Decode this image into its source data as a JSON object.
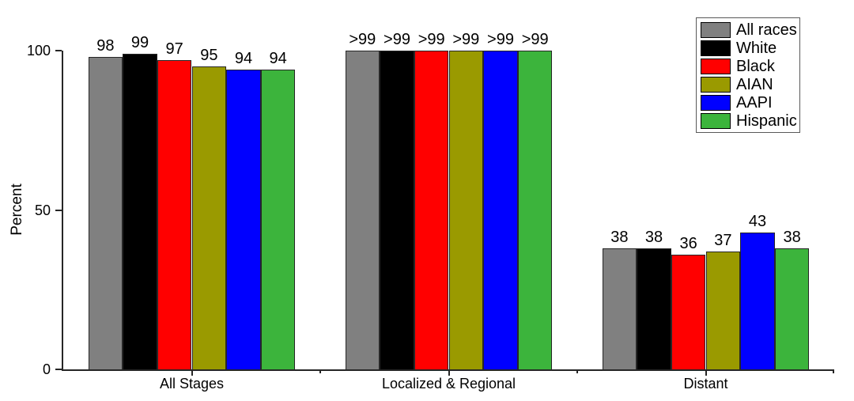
{
  "chart_data": {
    "type": "bar",
    "title": "",
    "xlabel": "",
    "ylabel": "Percent",
    "ylim": [
      0,
      100
    ],
    "yticks": [
      0,
      50,
      100
    ],
    "grid": false,
    "legend": {
      "position": "top-right",
      "entries": [
        "All races",
        "White",
        "Black",
        "AIAN",
        "AAPI",
        "Hispanic"
      ]
    },
    "categories": [
      "All Stages",
      "Localized & Regional",
      "Distant"
    ],
    "series": [
      {
        "name": "All races",
        "color": "#808080",
        "values": [
          98,
          100,
          38
        ],
        "labels": [
          "98",
          ">99",
          "38"
        ]
      },
      {
        "name": "White",
        "color": "#000000",
        "values": [
          99,
          100,
          38
        ],
        "labels": [
          "99",
          ">99",
          "38"
        ]
      },
      {
        "name": "Black",
        "color": "#FF0000",
        "values": [
          97,
          100,
          36
        ],
        "labels": [
          "97",
          ">99",
          "36"
        ]
      },
      {
        "name": "AIAN",
        "color": "#9A9A00",
        "values": [
          95,
          100,
          37
        ],
        "labels": [
          "95",
          ">99",
          "37"
        ]
      },
      {
        "name": "AAPI",
        "color": "#0000FF",
        "values": [
          94,
          100,
          43
        ],
        "labels": [
          "94",
          ">99",
          "43"
        ]
      },
      {
        "name": "Hispanic",
        "color": "#3CB43C",
        "values": [
          94,
          100,
          38
        ],
        "labels": [
          "94",
          ">99",
          "38"
        ]
      }
    ],
    "axis_color": "#262626",
    "text_color": "#000000"
  }
}
